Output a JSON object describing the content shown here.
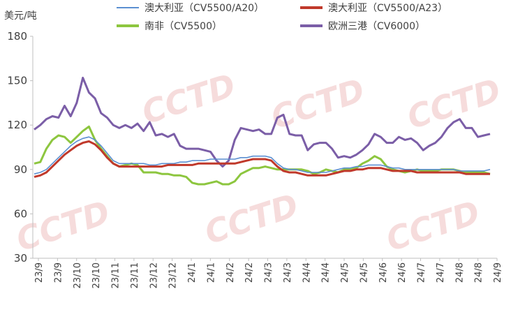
{
  "chart_data": {
    "type": "line",
    "unit_label": "美元/吨",
    "watermark": "CCTD",
    "ylim": [
      30,
      180
    ],
    "yticks": [
      30,
      60,
      90,
      120,
      150,
      180
    ],
    "x_tick_labels": [
      "23/9",
      "23/9",
      "23/10",
      "23/10",
      "23/11",
      "23/11",
      "23/12",
      "23/12",
      "24/1",
      "24/1",
      "24/2",
      "24/2",
      "24/3",
      "24/3",
      "24/4",
      "24/4",
      "24/5",
      "24/5",
      "24/6",
      "24/6",
      "24/7",
      "24/7",
      "24/8",
      "24/8",
      "24/9"
    ],
    "grid": false,
    "legend_position": "top",
    "colors": {
      "au_a20": "#5b8fd1",
      "au_a23": "#c0392b",
      "sa": "#8dc63f",
      "eu": "#7b5ea7"
    },
    "series": [
      {
        "name": "澳大利亚（CV5500/A20）",
        "key": "au_a20",
        "values": [
          87,
          88,
          90,
          94,
          98,
          102,
          106,
          109,
          111,
          112,
          110,
          106,
          101,
          96,
          94,
          94,
          94,
          94,
          94,
          93,
          93,
          94,
          94,
          94,
          95,
          95,
          96,
          96,
          96,
          97,
          97,
          97,
          97,
          97,
          98,
          98,
          99,
          99,
          99,
          98,
          94,
          91,
          90,
          90,
          89,
          88,
          88,
          88,
          88,
          89,
          90,
          91,
          91,
          92,
          92,
          93,
          93,
          93,
          92,
          91,
          91,
          90,
          90,
          90,
          90,
          90,
          90,
          90,
          90,
          90,
          89,
          89,
          89,
          89,
          89,
          90
        ]
      },
      {
        "name": "澳大利亚（CV5500/A23）",
        "key": "au_a23",
        "values": [
          85,
          86,
          88,
          92,
          96,
          100,
          103,
          106,
          108,
          109,
          107,
          103,
          98,
          94,
          92,
          92,
          92,
          92,
          92,
          92,
          92,
          92,
          93,
          93,
          93,
          93,
          93,
          94,
          94,
          94,
          94,
          94,
          94,
          94,
          95,
          96,
          97,
          97,
          97,
          96,
          92,
          89,
          88,
          88,
          87,
          86,
          86,
          86,
          86,
          87,
          88,
          89,
          89,
          90,
          90,
          91,
          91,
          91,
          90,
          89,
          89,
          89,
          89,
          88,
          88,
          88,
          88,
          88,
          88,
          88,
          88,
          87,
          87,
          87,
          87,
          87
        ]
      },
      {
        "name": "南非（CV5500）",
        "key": "sa",
        "values": [
          94,
          95,
          104,
          110,
          113,
          112,
          108,
          112,
          116,
          119,
          110,
          104,
          99,
          94,
          92,
          93,
          94,
          93,
          88,
          88,
          88,
          87,
          87,
          86,
          86,
          85,
          81,
          80,
          80,
          81,
          82,
          80,
          80,
          82,
          87,
          89,
          91,
          91,
          92,
          91,
          90,
          90,
          90,
          90,
          90,
          89,
          87,
          88,
          90,
          89,
          88,
          90,
          90,
          91,
          94,
          96,
          99,
          97,
          92,
          90,
          89,
          88,
          89,
          90,
          89,
          89,
          89,
          90,
          90,
          90,
          89,
          88,
          88,
          88,
          88,
          87
        ]
      },
      {
        "name": "欧洲三港（CV6000）",
        "key": "eu",
        "values": [
          117,
          120,
          124,
          126,
          125,
          133,
          126,
          135,
          152,
          142,
          138,
          128,
          125,
          120,
          118,
          120,
          118,
          121,
          116,
          122,
          113,
          114,
          112,
          114,
          106,
          104,
          104,
          104,
          103,
          102,
          96,
          92,
          96,
          110,
          118,
          117,
          116,
          117,
          114,
          114,
          125,
          127,
          114,
          113,
          113,
          103,
          107,
          108,
          108,
          104,
          98,
          99,
          98,
          100,
          103,
          107,
          114,
          112,
          108,
          108,
          112,
          110,
          111,
          108,
          103,
          106,
          108,
          112,
          118,
          122,
          124,
          118,
          118,
          112,
          113,
          114
        ]
      }
    ]
  }
}
